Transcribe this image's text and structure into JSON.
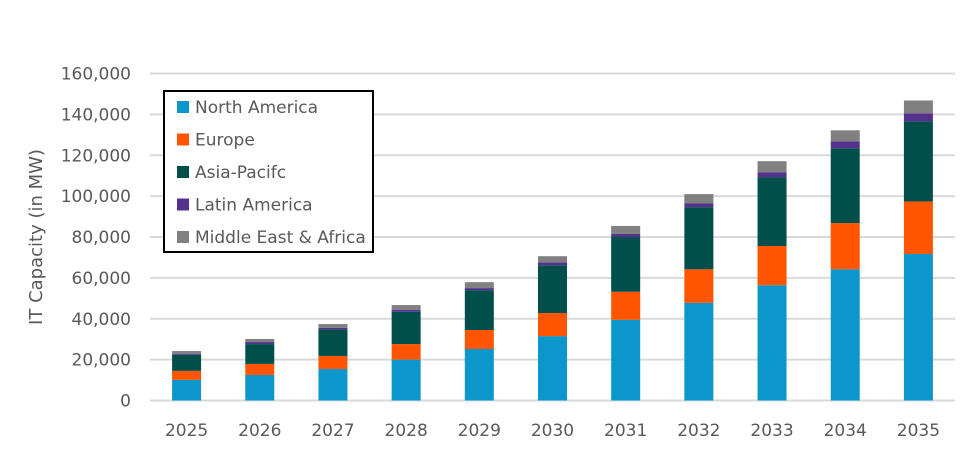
{
  "chart_data": {
    "type": "bar",
    "stacked": true,
    "title": "",
    "xlabel": "",
    "ylabel": "IT Capacity (in MW)",
    "ylim": [
      0,
      160000
    ],
    "yticks": [
      "0",
      "20,000",
      "40,000",
      "60,000",
      "80,000",
      "100,000",
      "120,000",
      "140,000",
      "160,000"
    ],
    "grid": true,
    "legend_position": "top-left",
    "categories": [
      "2025",
      "2026",
      "2027",
      "2028",
      "2029",
      "2030",
      "2031",
      "2032",
      "2033",
      "2034",
      "2035"
    ],
    "series": [
      {
        "name": "North America",
        "color": "#0B96CC",
        "values": [
          10100,
          12500,
          15400,
          20000,
          25200,
          31500,
          39500,
          47800,
          56400,
          64200,
          71700
        ]
      },
      {
        "name": "Europe",
        "color": "#FF5500",
        "values": [
          4400,
          5400,
          6400,
          7600,
          9300,
          11300,
          13700,
          16400,
          19200,
          22600,
          25700
        ]
      },
      {
        "name": "Asia-Pacifc",
        "color": "#004F4A",
        "values": [
          7900,
          9700,
          13000,
          15800,
          19500,
          23400,
          26800,
          30400,
          33700,
          36600,
          39200
        ]
      },
      {
        "name": "Latin America",
        "color": "#55308D",
        "values": [
          500,
          1000,
          800,
          1000,
          1000,
          1400,
          1500,
          1800,
          2400,
          3300,
          3900
        ]
      },
      {
        "name": "Middle East & Africa",
        "color": "#808080",
        "values": [
          1300,
          1500,
          1800,
          2300,
          2900,
          3000,
          3900,
          4600,
          5400,
          5500,
          6300
        ]
      }
    ]
  }
}
